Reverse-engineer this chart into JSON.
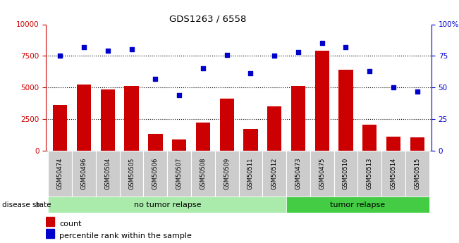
{
  "title": "GDS1263 / 6558",
  "categories": [
    "GSM50474",
    "GSM50496",
    "GSM50504",
    "GSM50505",
    "GSM50506",
    "GSM50507",
    "GSM50508",
    "GSM50509",
    "GSM50511",
    "GSM50512",
    "GSM50473",
    "GSM50475",
    "GSM50510",
    "GSM50513",
    "GSM50514",
    "GSM50515"
  ],
  "counts": [
    3600,
    5250,
    4850,
    5150,
    1350,
    900,
    2200,
    4100,
    1700,
    3500,
    5150,
    7900,
    6400,
    2050,
    1100,
    1050
  ],
  "percentiles": [
    75,
    82,
    79,
    80,
    57,
    44,
    65,
    76,
    61,
    75,
    78,
    85,
    82,
    63,
    50,
    47
  ],
  "no_tumor_count": 10,
  "tumor_count": 6,
  "bar_color": "#cc0000",
  "dot_color": "#0000cc",
  "left_axis_color": "#cc0000",
  "right_axis_color": "#0000cc",
  "ylim_left": [
    0,
    10000
  ],
  "ylim_right": [
    0,
    100
  ],
  "yticks_left": [
    0,
    2500,
    5000,
    7500,
    10000
  ],
  "yticks_right": [
    0,
    25,
    50,
    75,
    100
  ],
  "ytick_labels_right": [
    "0",
    "25",
    "50",
    "75",
    "100%"
  ],
  "grid_values": [
    2500,
    5000,
    7500
  ],
  "no_tumor_label": "no tumor relapse",
  "tumor_label": "tumor relapse",
  "disease_state_label": "disease state",
  "legend_count_label": "count",
  "legend_percentile_label": "percentile rank within the sample",
  "no_tumor_color": "#aaeaaa",
  "tumor_color": "#44cc44",
  "xlabel_bg_color": "#cccccc"
}
